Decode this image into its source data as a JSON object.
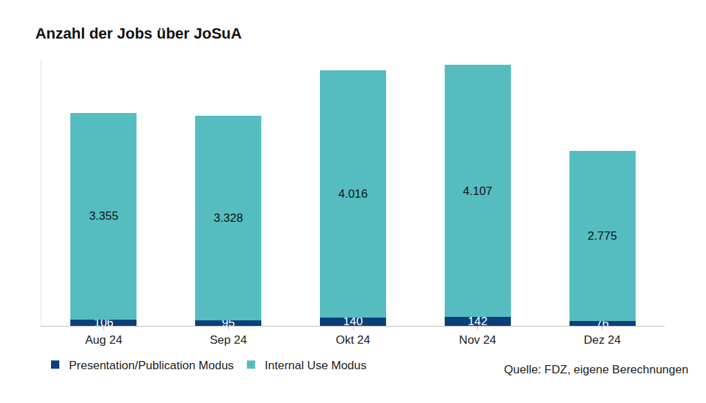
{
  "chart_data": {
    "type": "bar",
    "title": "Anzahl der Jobs über JoSuA",
    "categories": [
      "Aug 24",
      "Sep 24",
      "Okt 24",
      "Nov 24",
      "Dez 24"
    ],
    "stacked": true,
    "data_labels": true,
    "tick_labels": "x",
    "grid": false,
    "legend": "bottom-left",
    "ylim": [
      0,
      4350
    ],
    "series": [
      {
        "name": "Presentation/Publication Modus",
        "color": "#0b3f7c",
        "values": [
          106,
          95,
          140,
          142,
          76
        ]
      },
      {
        "name": "Internal Use Modus",
        "color": "#55bdc0",
        "values": [
          3355,
          3328,
          4016,
          4107,
          2775
        ],
        "value_labels": [
          "3.355",
          "3.328",
          "4.016",
          "4.107",
          "2.775"
        ]
      }
    ],
    "annotations": [
      "Quelle: FDZ, eigene Berechnungen"
    ]
  }
}
